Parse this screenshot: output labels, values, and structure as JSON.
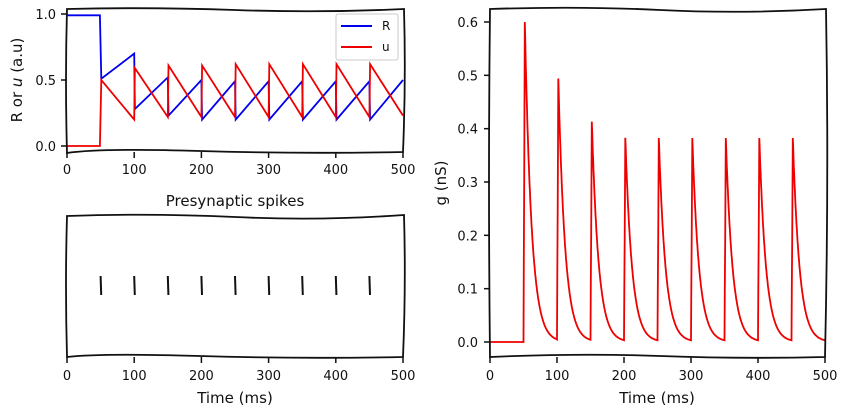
{
  "chart_data": [
    {
      "type": "line",
      "ylabel_main": "R or ",
      "ylabel_italic": "u",
      "ylabel_unit": " (a.u)",
      "xlim": [
        0,
        500
      ],
      "ylim": [
        0,
        1
      ],
      "xticks": [
        "0",
        "100",
        "200",
        "300",
        "400",
        "500"
      ],
      "yticks": [
        "0.0",
        "0.5",
        "1.0"
      ],
      "legend": "top-right",
      "series": [
        {
          "name": "R",
          "color": "#0000ee",
          "x": [
            0,
            49,
            51,
            100,
            101,
            150,
            151,
            200,
            201,
            250,
            251,
            300,
            301,
            350,
            351,
            400,
            401,
            450,
            451,
            500
          ],
          "y": [
            0.99,
            0.99,
            0.51,
            0.7,
            0.28,
            0.52,
            0.23,
            0.5,
            0.2,
            0.49,
            0.2,
            0.49,
            0.2,
            0.49,
            0.2,
            0.49,
            0.2,
            0.49,
            0.2,
            0.5
          ]
        },
        {
          "name": "u",
          "color": "#ee0000",
          "x": [
            0,
            49,
            51,
            100,
            101,
            150,
            151,
            200,
            201,
            250,
            251,
            300,
            301,
            350,
            351,
            400,
            401,
            450,
            451,
            500
          ],
          "y": [
            0.0,
            0.0,
            0.5,
            0.2,
            0.59,
            0.22,
            0.61,
            0.22,
            0.61,
            0.22,
            0.62,
            0.22,
            0.62,
            0.22,
            0.62,
            0.22,
            0.62,
            0.22,
            0.62,
            0.23
          ]
        }
      ]
    },
    {
      "type": "scatter",
      "title": "Presynaptic spikes",
      "xlabel": "Time (ms)",
      "xlim": [
        0,
        500
      ],
      "xticks": [
        "0",
        "100",
        "200",
        "300",
        "400",
        "500"
      ],
      "spike_times": [
        50,
        100,
        150,
        200,
        250,
        300,
        350,
        400,
        450
      ]
    },
    {
      "type": "line",
      "xlabel": "Time (ms)",
      "ylabel": "g (nS)",
      "xlim": [
        0,
        500
      ],
      "ylim": [
        0,
        0.6
      ],
      "xticks": [
        "0",
        "100",
        "200",
        "300",
        "400",
        "500"
      ],
      "yticks": [
        "0.0",
        "0.1",
        "0.2",
        "0.3",
        "0.4",
        "0.5",
        "0.6"
      ],
      "color": "#ee0000",
      "spike_times": [
        50,
        100,
        150,
        200,
        250,
        300,
        350,
        400,
        450
      ],
      "peaks": [
        0.6,
        0.49,
        0.41,
        0.38,
        0.38,
        0.38,
        0.38,
        0.38,
        0.38
      ],
      "decay_ms": 10
    }
  ]
}
